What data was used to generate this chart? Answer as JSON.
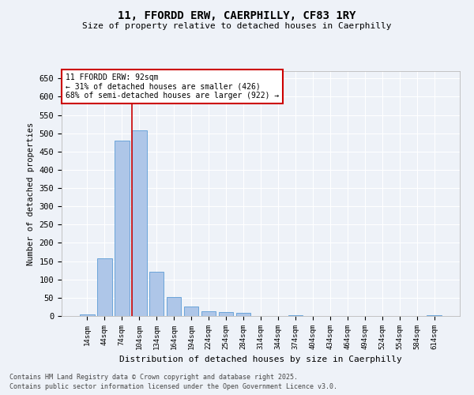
{
  "title1": "11, FFORDD ERW, CAERPHILLY, CF83 1RY",
  "title2": "Size of property relative to detached houses in Caerphilly",
  "xlabel": "Distribution of detached houses by size in Caerphilly",
  "ylabel": "Number of detached properties",
  "categories": [
    "14sqm",
    "44sqm",
    "74sqm",
    "104sqm",
    "134sqm",
    "164sqm",
    "194sqm",
    "224sqm",
    "254sqm",
    "284sqm",
    "314sqm",
    "344sqm",
    "374sqm",
    "404sqm",
    "434sqm",
    "464sqm",
    "494sqm",
    "524sqm",
    "554sqm",
    "584sqm",
    "614sqm"
  ],
  "values": [
    5,
    158,
    480,
    508,
    122,
    51,
    25,
    13,
    11,
    9,
    0,
    0,
    3,
    0,
    0,
    0,
    0,
    0,
    0,
    0,
    2
  ],
  "bar_color": "#aec6e8",
  "bar_edge_color": "#5b9bd5",
  "vline_color": "#cc0000",
  "annotation_text": "11 FFORDD ERW: 92sqm\n← 31% of detached houses are smaller (426)\n68% of semi-detached houses are larger (922) →",
  "annotation_box_color": "#ffffff",
  "annotation_box_edge": "#cc0000",
  "ylim": [
    0,
    670
  ],
  "yticks": [
    0,
    50,
    100,
    150,
    200,
    250,
    300,
    350,
    400,
    450,
    500,
    550,
    600,
    650
  ],
  "bg_color": "#eef2f8",
  "grid_color": "#ffffff",
  "footer1": "Contains HM Land Registry data © Crown copyright and database right 2025.",
  "footer2": "Contains public sector information licensed under the Open Government Licence v3.0."
}
